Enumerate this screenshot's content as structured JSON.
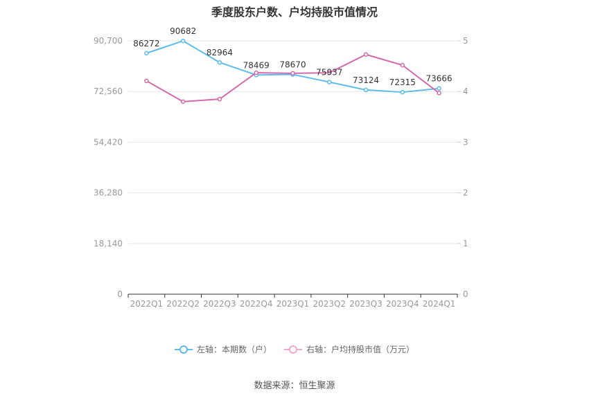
{
  "chart_data": {
    "type": "line",
    "title": "季度股东户数、户均持股市值情况",
    "categories": [
      "2022Q1",
      "2022Q2",
      "2022Q3",
      "2022Q4",
      "2023Q1",
      "2023Q2",
      "2023Q3",
      "2023Q4",
      "2024Q1"
    ],
    "y_left": {
      "min": 0,
      "max": 90700,
      "ticks": [
        "0",
        "18,140",
        "36,280",
        "54,420",
        "72,560",
        "90,700"
      ]
    },
    "y_right": {
      "min": 0,
      "max": 5,
      "ticks": [
        "0",
        "1",
        "2",
        "3",
        "4",
        "5"
      ]
    },
    "grid": true,
    "legend_position": "bottom",
    "series": [
      {
        "name": "左轴：本期数（户）",
        "axis": "left",
        "color": "#5bbcec",
        "values": [
          86272,
          90682,
          82964,
          78469,
          78670,
          75937,
          73124,
          72315,
          73666
        ],
        "labels": [
          "86272",
          "90682",
          "82964",
          "78469",
          "78670",
          "75937",
          "73124",
          "72315",
          "73666"
        ]
      },
      {
        "name": "右轴：户均持股市值（万元）",
        "axis": "right",
        "color": "#d46aaa",
        "values": [
          4.21,
          3.8,
          3.85,
          4.37,
          4.36,
          4.37,
          4.73,
          4.52,
          3.97
        ]
      }
    ]
  },
  "source": "数据来源：恒生聚源"
}
